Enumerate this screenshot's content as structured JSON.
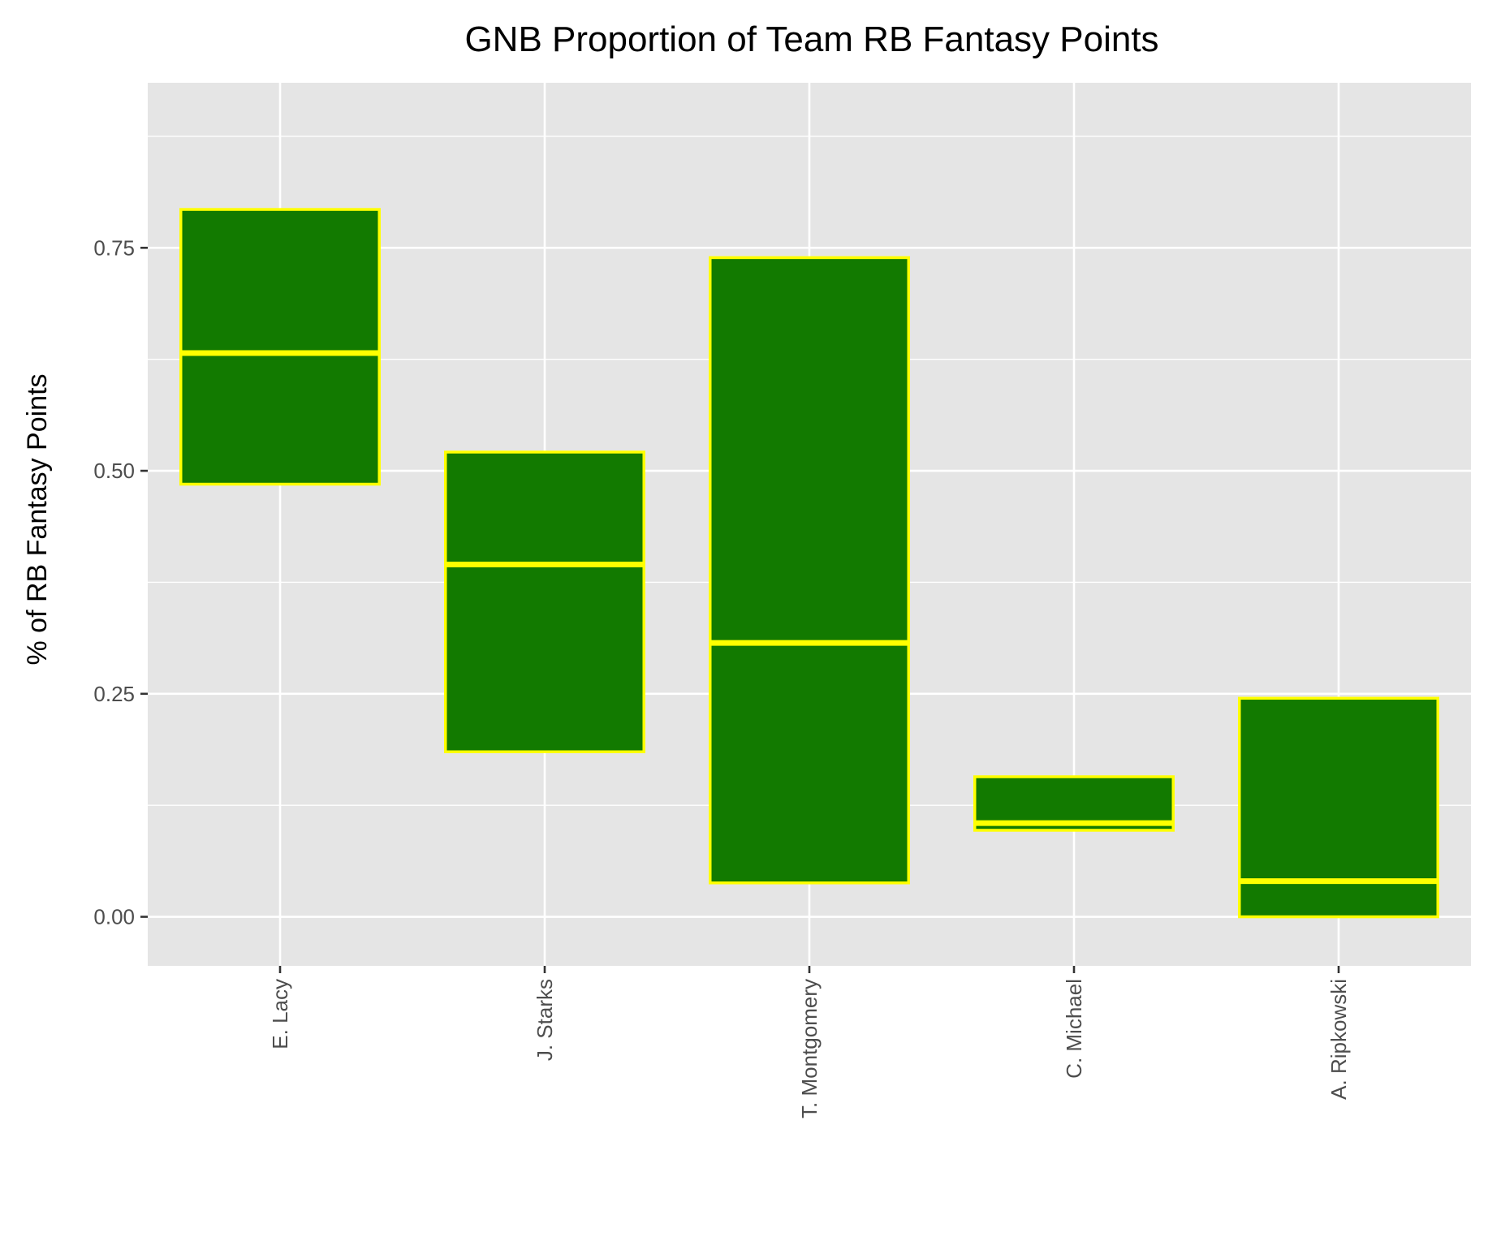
{
  "chart_data": {
    "type": "boxplot",
    "title": "GNB Proportion of Team RB Fantasy Points",
    "xlabel": "",
    "ylabel": "% of RB Fantasy Points",
    "ylim": [
      -0.055,
      0.935
    ],
    "yticks": [
      0.0,
      0.25,
      0.5,
      0.75
    ],
    "ytick_labels": [
      "0.00",
      "0.25",
      "0.50",
      "0.75"
    ],
    "categories": [
      "E. Lacy",
      "J. Starks",
      "T. Montgomery",
      "C. Michael",
      "A. Ripkowski"
    ],
    "boxes": [
      {
        "category": "E. Lacy",
        "q1": 0.485,
        "median": 0.632,
        "q3": 0.793
      },
      {
        "category": "J. Starks",
        "q1": 0.185,
        "median": 0.395,
        "q3": 0.521
      },
      {
        "category": "T. Montgomery",
        "q1": 0.038,
        "median": 0.307,
        "q3": 0.739
      },
      {
        "category": "C. Michael",
        "q1": 0.097,
        "median": 0.105,
        "q3": 0.157
      },
      {
        "category": "A. Ripkowski",
        "q1": 0.0,
        "median": 0.04,
        "q3": 0.245
      }
    ],
    "grid": true,
    "colors": {
      "panel_background": "#e5e5e5",
      "grid_line": "#ffffff",
      "box_fill": "#127a00",
      "box_outline": "#ffff00",
      "tick_mark": "#333333",
      "tick_label": "#4d4d4d"
    }
  }
}
